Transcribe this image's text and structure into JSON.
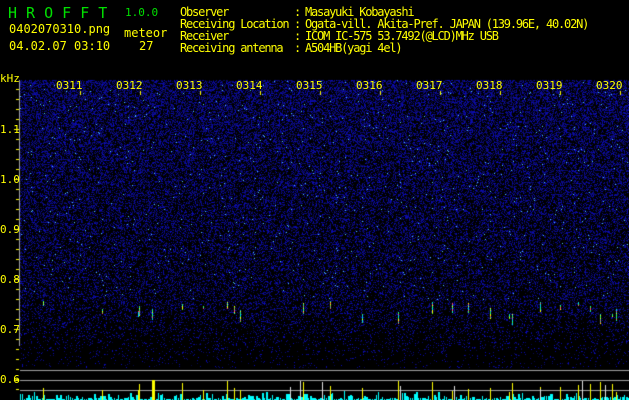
{
  "app": {
    "name": "H R O F F T",
    "version": "1.0.0"
  },
  "file": {
    "name": "0402070310.png",
    "datetime": "04.02.07 03:10"
  },
  "meteor": {
    "label": "meteor",
    "count": "27"
  },
  "info": [
    {
      "label": "Observer",
      "value": "Masayuki Kobayashi"
    },
    {
      "label": "Receiving Location",
      "value": "Ogata-vill. Akita-Pref. JAPAN (139.96E, 40.02N)"
    },
    {
      "label": "Receiver",
      "value": "ICOM IC-575 53.7492(@LCD)MHz USB"
    },
    {
      "label": "Receiving antenna",
      "value": "A504HB(yagi 4el)"
    }
  ],
  "spectrogram": {
    "unit": "kHz",
    "y_ticks": [
      "1.1",
      "1.0",
      "0.9",
      "0.8",
      "0.7",
      "0.6"
    ],
    "time_labels": [
      "0311",
      "0312",
      "0313",
      "0314",
      "0315",
      "0316",
      "0317",
      "0318",
      "0319",
      "0320"
    ]
  },
  "colors": {
    "text": "#ffff00",
    "title": "#00e000",
    "noise": "#2020c0",
    "histogram": "#00ffff",
    "meteor_bar": "#ffff00",
    "grid": "#a0a0a0"
  }
}
